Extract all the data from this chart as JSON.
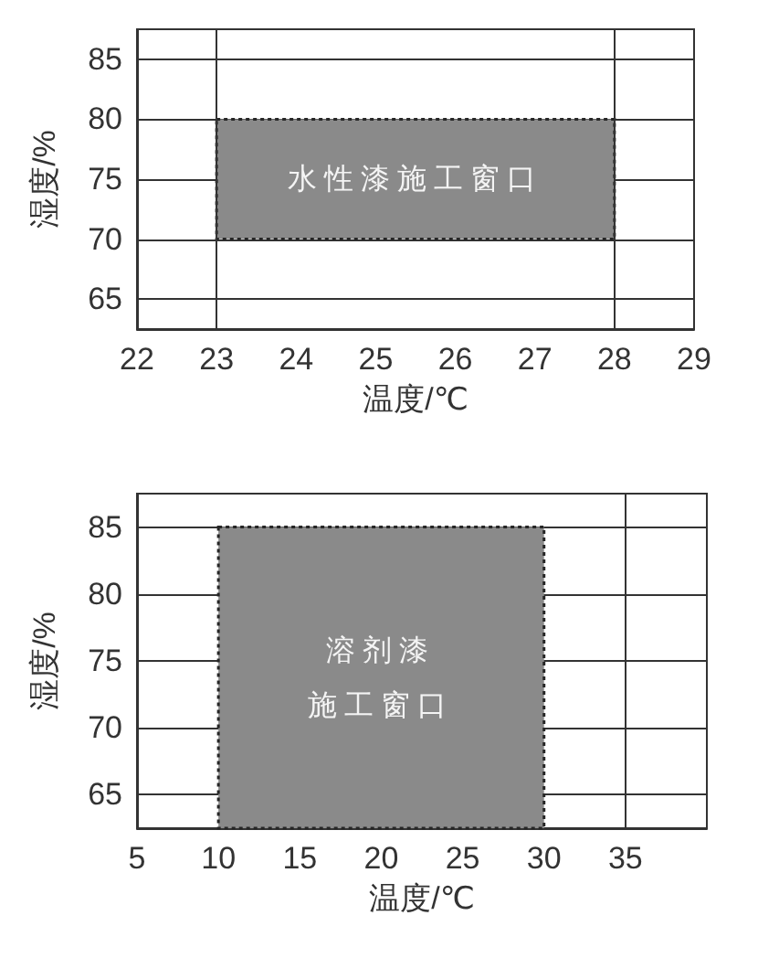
{
  "chart_data": [
    {
      "type": "area",
      "xlabel": "温度/℃",
      "ylabel": "湿度/%",
      "xlim": [
        22,
        29
      ],
      "xticks": [
        22,
        23,
        24,
        25,
        26,
        27,
        28,
        29
      ],
      "ylim": [
        62.5,
        87.5
      ],
      "yticks": [
        65,
        70,
        75,
        80,
        85
      ],
      "grid": "y",
      "series": [
        {
          "x": [
            23,
            28
          ],
          "values": [
            null,
            null
          ],
          "lower": [
            70,
            70
          ],
          "upper": [
            80,
            80
          ],
          "color": "#8a8a8a",
          "line_style": "dotted"
        }
      ],
      "ref_lines": [
        {
          "axis": "x",
          "value": 23
        },
        {
          "axis": "x",
          "value": 28
        }
      ],
      "annotations": [
        "水性漆施工窗口"
      ]
    },
    {
      "type": "area",
      "xlabel": "温度/℃",
      "ylabel": "湿度/%",
      "xlim": [
        5,
        40
      ],
      "xticks": [
        5,
        10,
        15,
        20,
        25,
        30,
        35
      ],
      "ylim": [
        62.5,
        87.5
      ],
      "yticks": [
        65,
        70,
        75,
        80,
        85
      ],
      "grid": "y",
      "series": [
        {
          "x": [
            10,
            30
          ],
          "values": [
            null,
            null
          ],
          "lower": [
            62.5,
            62.5
          ],
          "upper": [
            85,
            85
          ],
          "color": "#8a8a8a",
          "line_style": "dotted"
        }
      ],
      "ref_lines": [
        {
          "axis": "x",
          "value": 35
        }
      ],
      "annotations": [
        "溶剂漆施工窗口"
      ]
    }
  ]
}
